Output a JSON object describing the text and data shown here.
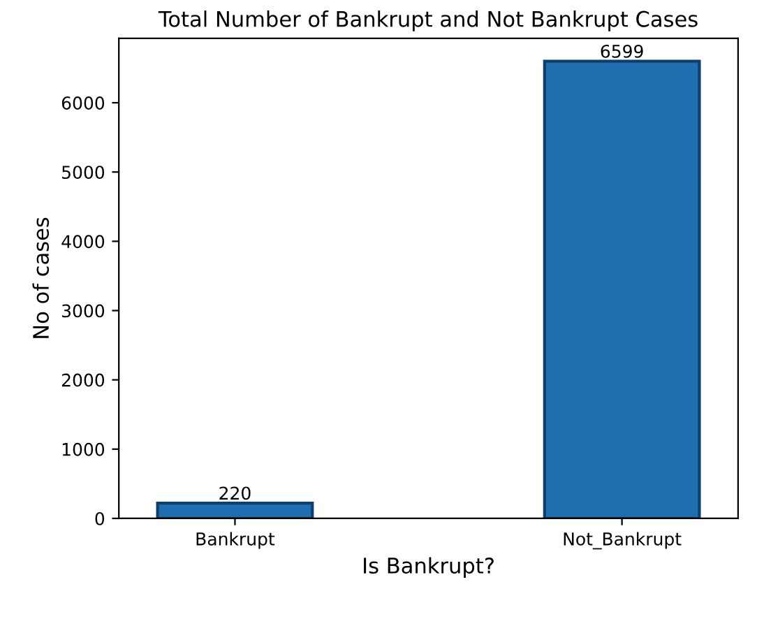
{
  "chart_data": {
    "type": "bar",
    "title": "Total Number of Bankrupt and Not Bankrupt Cases",
    "xlabel": "Is Bankrupt?",
    "ylabel": "No of cases",
    "categories": [
      "Bankrupt",
      "Not_Bankrupt"
    ],
    "values": [
      220,
      6599
    ],
    "color": "#1f6fb0",
    "ylim": [
      0,
      6929
    ],
    "yticks": [
      0,
      1000,
      2000,
      3000,
      4000,
      5000,
      6000
    ],
    "data_labels": true,
    "grid": false
  }
}
